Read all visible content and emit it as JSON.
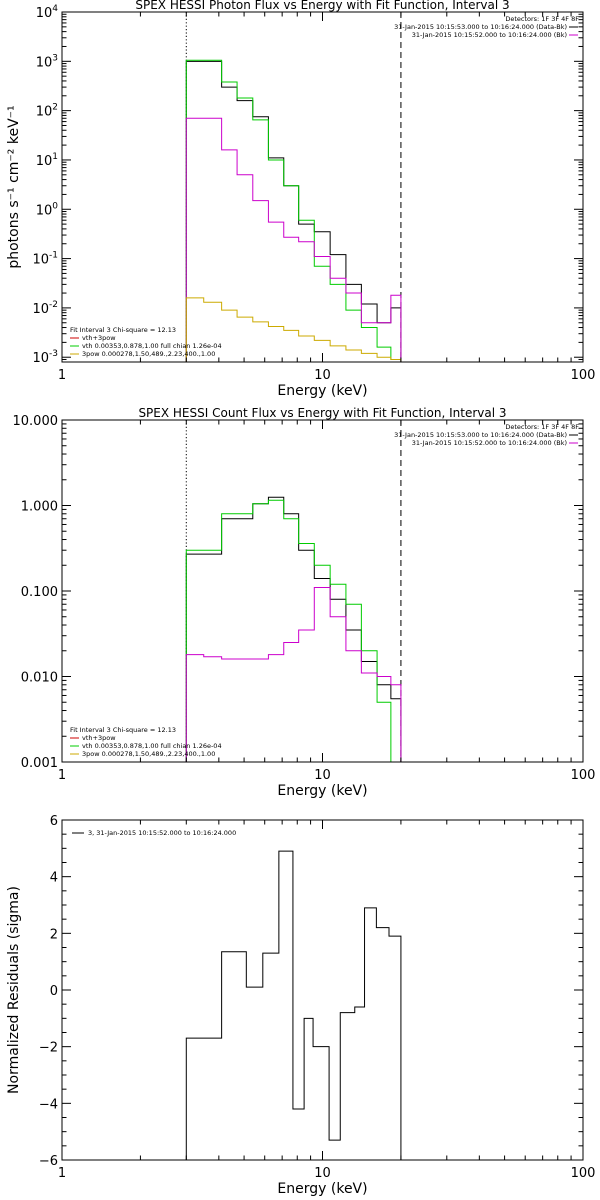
{
  "chart_data": [
    {
      "type": "line",
      "title": "SPEX HESSI Photon Flux vs Energy with Fit Function, Interval 3",
      "xlabel": "Energy (keV)",
      "ylabel": "photons s⁻¹ cm⁻² keV⁻¹",
      "xscale": "log",
      "yscale": "log",
      "xlim": [
        1,
        100
      ],
      "ylim": [
        0.0008,
        10000
      ],
      "x_ticks": [
        "1",
        "10",
        "100"
      ],
      "y_ticks": [
        {
          "value": 0.001,
          "base": "10",
          "exp": "-3"
        },
        {
          "value": 0.01,
          "base": "10",
          "exp": "-2"
        },
        {
          "value": 0.1,
          "base": "10",
          "exp": "-1"
        },
        {
          "value": 1,
          "base": "10",
          "exp": "0"
        },
        {
          "value": 10,
          "base": "10",
          "exp": "1"
        },
        {
          "value": 100,
          "base": "10",
          "exp": "2"
        },
        {
          "value": 1000,
          "base": "10",
          "exp": "3"
        },
        {
          "value": 10000,
          "base": "10",
          "exp": "4"
        }
      ],
      "vlines": [
        {
          "x": 3.0,
          "style": "dotted"
        },
        {
          "x": 20.0,
          "style": "dashed"
        }
      ],
      "detectors_label": "Detectors: 1F 3F 4F 8F",
      "legend_tr": [
        {
          "text": "31-Jan-2015 10:15:53.000 to 10:16:24.000 (Data-Bk)",
          "color": "#000000"
        },
        {
          "text": "31-Jan-2015 10:15:52.000 to 10:16:24.000 (Bk)",
          "color": "#cc00cc"
        }
      ],
      "legend_bl_title": "Fit Interval 3    Chi-square = 12.13",
      "legend_bl": [
        {
          "text": "vth+3pow",
          "color": "#cc0000"
        },
        {
          "text": "vth 0.00353,0.878,1.00   full chian 1.26e-04",
          "color": "#00cc00"
        },
        {
          "text": "3pow 0.000278,1.50,489.,2.23,400.,1.00",
          "color": "#ccaa00"
        }
      ],
      "edges": [
        3.0,
        3.5,
        4.1,
        4.7,
        5.4,
        6.2,
        7.1,
        8.1,
        9.3,
        10.7,
        12.3,
        14.1,
        16.2,
        18.3,
        20.0
      ],
      "series": [
        {
          "color": "#000000",
          "values": [
            1000,
            1000,
            300,
            160,
            75,
            11,
            3.0,
            0.5,
            0.35,
            0.12,
            0.03,
            0.012,
            0.005,
            0.01
          ]
        },
        {
          "color": "#00cc00",
          "values": [
            1050,
            1050,
            380,
            180,
            65,
            10,
            3.0,
            0.6,
            0.07,
            0.03,
            0.009,
            0.004,
            0.0016,
            0.0009
          ]
        },
        {
          "color": "#cc00cc",
          "values": [
            70,
            70,
            16,
            5.0,
            1.5,
            0.55,
            0.27,
            0.22,
            0.11,
            0.04,
            0.02,
            0.005,
            0.005,
            0.018
          ]
        },
        {
          "color": "#ccaa00",
          "values": [
            0.016,
            0.013,
            0.009,
            0.0065,
            0.0052,
            0.0042,
            0.0035,
            0.0027,
            0.0022,
            0.0017,
            0.0014,
            0.0012,
            0.001,
            0.0009
          ]
        }
      ]
    },
    {
      "type": "line",
      "title": "SPEX HESSI Count Flux vs Energy with Fit Function, Interval 3",
      "xlabel": "Energy (keV)",
      "xscale": "log",
      "yscale": "log",
      "xlim": [
        1,
        100
      ],
      "ylim": [
        0.001,
        10
      ],
      "x_ticks": [
        "1",
        "10",
        "100"
      ],
      "y_ticks": [
        {
          "value": 0.001,
          "label": "0.001"
        },
        {
          "value": 0.01,
          "label": "0.010"
        },
        {
          "value": 0.1,
          "label": "0.100"
        },
        {
          "value": 1,
          "label": "1.000"
        },
        {
          "value": 10,
          "label": "10.000"
        }
      ],
      "vlines": [
        {
          "x": 3.0,
          "style": "dotted"
        },
        {
          "x": 20.0,
          "style": "dashed"
        }
      ],
      "detectors_label": "Detectors: 1F 3F 4F 8F",
      "legend_tr": [
        {
          "text": "31-Jan-2015 10:15:53.000 to 10:16:24.000 (Data-Bk)",
          "color": "#000000"
        },
        {
          "text": "31-Jan-2015 10:15:52.000 to 10:16:24.000 (Bk)",
          "color": "#cc00cc"
        }
      ],
      "legend_bl_title": "Fit Interval 3    Chi-square = 12.13",
      "legend_bl": [
        {
          "text": "vth+3pow",
          "color": "#cc0000"
        },
        {
          "text": "vth 0.00353,0.878,1.00   full chian 1.26e-04",
          "color": "#00cc00"
        },
        {
          "text": "3pow 0.000278,1.50,489.,2.23,400.,1.00",
          "color": "#ccaa00"
        }
      ],
      "edges": [
        3.0,
        3.5,
        4.1,
        4.7,
        5.4,
        6.2,
        7.1,
        8.1,
        9.3,
        10.7,
        12.3,
        14.1,
        16.2,
        18.3,
        20.0
      ],
      "series": [
        {
          "color": "#000000",
          "values": [
            0.27,
            0.27,
            0.7,
            0.7,
            1.05,
            1.25,
            0.8,
            0.3,
            0.14,
            0.08,
            0.035,
            0.015,
            0.008,
            0.0055
          ]
        },
        {
          "color": "#00cc00",
          "values": [
            0.3,
            0.3,
            0.8,
            0.8,
            1.05,
            1.15,
            0.7,
            0.36,
            0.2,
            0.12,
            0.07,
            0.02,
            0.005,
            0.0009
          ]
        },
        {
          "color": "#cc00cc",
          "values": [
            0.018,
            0.017,
            0.016,
            0.016,
            0.016,
            0.018,
            0.025,
            0.035,
            0.11,
            0.05,
            0.02,
            0.011,
            0.01,
            0.008
          ]
        }
      ]
    },
    {
      "type": "line",
      "xlabel": "Energy (keV)",
      "ylabel": "Normalized Residuals (sigma)",
      "xscale": "log",
      "yscale": "linear",
      "xlim": [
        1,
        100
      ],
      "ylim": [
        -6,
        6
      ],
      "x_ticks": [
        "1",
        "10",
        "100"
      ],
      "y_ticks": [
        {
          "value": -6,
          "label": "−6"
        },
        {
          "value": -4,
          "label": "−4"
        },
        {
          "value": -2,
          "label": "−2"
        },
        {
          "value": 0,
          "label": "0"
        },
        {
          "value": 2,
          "label": "2"
        },
        {
          "value": 4,
          "label": "4"
        },
        {
          "value": 6,
          "label": "6"
        }
      ],
      "legend_tl": [
        {
          "text": "3, 31-Jan-2015 10:15:52.000 to 10:16:24.000",
          "color": "#000000"
        }
      ],
      "edges": [
        3.0,
        3.5,
        4.1,
        4.7,
        5.4,
        6.2,
        7.1,
        8.1,
        9.3,
        10.7,
        12.3,
        14.1,
        16.2,
        18.3,
        20.0
      ],
      "series": [
        {
          "color": "#000000",
          "values": [
            -1.7,
            -1.7,
            1.35,
            1.35,
            0.1,
            1.3,
            4.9,
            -4.2,
            -1.0,
            -2.0,
            -5.3,
            -0.8,
            -0.6,
            2.9,
            2.2,
            1.9
          ]
        }
      ],
      "edges_residual": [
        3.0,
        3.5,
        4.1,
        4.7,
        5.1,
        5.9,
        6.8,
        7.7,
        8.5,
        9.2,
        10.6,
        11.7,
        13.3,
        14.5,
        16.1,
        18.0,
        20.0
      ]
    }
  ]
}
